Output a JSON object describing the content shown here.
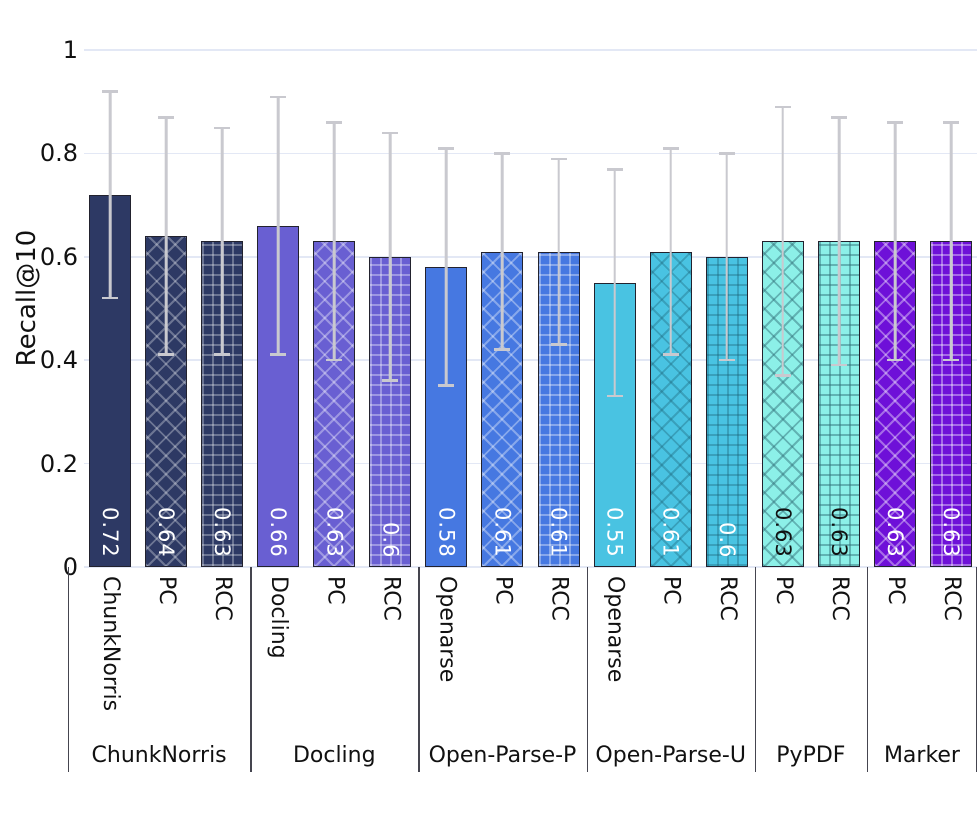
{
  "chart_data": {
    "type": "bar",
    "title": "",
    "ylabel": "Recall@10",
    "ylim": [
      0,
      1
    ],
    "yticks": [
      "1",
      "0.8",
      "0.6",
      "0.4",
      "0.2",
      "0"
    ],
    "ytick_values": [
      1,
      0.8,
      0.6,
      0.4,
      0.2,
      0
    ],
    "grid": "horizontal",
    "error_bar_color": "#c9c9cf",
    "groups": [
      {
        "label": "ChunkNorris",
        "fill": "#2d3964",
        "pattern_line": "rgba(255,255,255,0.30)",
        "value_text_color": "#ffffff",
        "bars": [
          {
            "tick": "ChunkNorris",
            "value": 0.72,
            "display": "0.72",
            "err_low": 0.52,
            "err_high": 0.92,
            "hatch": "solid"
          },
          {
            "tick": "PC",
            "value": 0.64,
            "display": "0.64",
            "err_low": 0.41,
            "err_high": 0.87,
            "hatch": "cross"
          },
          {
            "tick": "RCC",
            "value": 0.63,
            "display": "0.63",
            "err_low": 0.41,
            "err_high": 0.85,
            "hatch": "grid"
          }
        ]
      },
      {
        "label": "Docling",
        "fill": "#695fd2",
        "pattern_line": "rgba(255,255,255,0.35)",
        "value_text_color": "#ffffff",
        "bars": [
          {
            "tick": "Docling",
            "value": 0.66,
            "display": "0.66",
            "err_low": 0.41,
            "err_high": 0.91,
            "hatch": "solid"
          },
          {
            "tick": "PC",
            "value": 0.63,
            "display": "0.63",
            "err_low": 0.4,
            "err_high": 0.86,
            "hatch": "cross"
          },
          {
            "tick": "RCC",
            "value": 0.6,
            "display": "0.6",
            "err_low": 0.36,
            "err_high": 0.84,
            "hatch": "grid"
          }
        ]
      },
      {
        "label": "Open-Parse-P",
        "fill": "#4678e1",
        "pattern_line": "rgba(255,255,255,0.35)",
        "value_text_color": "#ffffff",
        "bars": [
          {
            "tick": "Openarse",
            "value": 0.58,
            "display": "0.58",
            "err_low": 0.35,
            "err_high": 0.81,
            "hatch": "solid"
          },
          {
            "tick": "PC",
            "value": 0.61,
            "display": "0.61",
            "err_low": 0.42,
            "err_high": 0.8,
            "hatch": "cross"
          },
          {
            "tick": "RCC",
            "value": 0.61,
            "display": "0.61",
            "err_low": 0.43,
            "err_high": 0.79,
            "hatch": "grid"
          }
        ]
      },
      {
        "label": "Open-Parse-U",
        "fill": "#49c3e2",
        "pattern_line": "rgba(25,95,115,0.35)",
        "value_text_color": "#ffffff",
        "bars": [
          {
            "tick": "Openarse",
            "value": 0.55,
            "display": "0.55",
            "err_low": 0.33,
            "err_high": 0.77,
            "hatch": "solid"
          },
          {
            "tick": "PC",
            "value": 0.61,
            "display": "0.61",
            "err_low": 0.41,
            "err_high": 0.81,
            "hatch": "cross"
          },
          {
            "tick": "RCC",
            "value": 0.6,
            "display": "0.6",
            "err_low": 0.4,
            "err_high": 0.8,
            "hatch": "grid"
          }
        ]
      },
      {
        "label": "PyPDF",
        "fill": "#8cf0e8",
        "pattern_line": "rgba(45,105,115,0.45)",
        "value_text_color": "#111111",
        "bars": [
          {
            "tick": "PC",
            "value": 0.63,
            "display": "0.63",
            "err_low": 0.37,
            "err_high": 0.89,
            "hatch": "cross"
          },
          {
            "tick": "RCC",
            "value": 0.63,
            "display": "0.63",
            "err_low": 0.39,
            "err_high": 0.87,
            "hatch": "grid"
          }
        ]
      },
      {
        "label": "Marker",
        "fill": "#6e10d8",
        "pattern_line": "rgba(255,255,255,0.38)",
        "value_text_color": "#ffffff",
        "bars": [
          {
            "tick": "PC",
            "value": 0.63,
            "display": "0.63",
            "err_low": 0.4,
            "err_high": 0.86,
            "hatch": "cross"
          },
          {
            "tick": "RCC",
            "value": 0.63,
            "display": "0.63",
            "err_low": 0.4,
            "err_high": 0.86,
            "hatch": "grid"
          }
        ]
      }
    ]
  }
}
